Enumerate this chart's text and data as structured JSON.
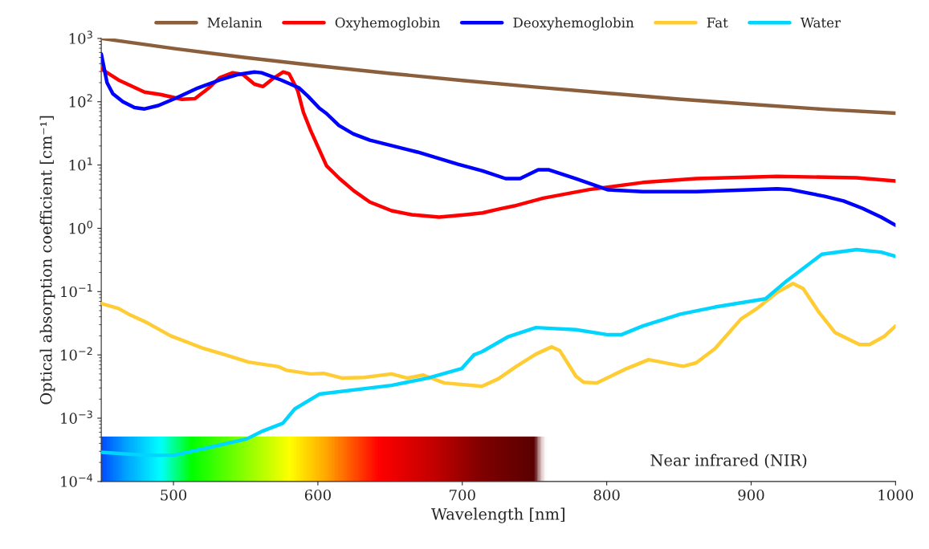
{
  "chart_data": {
    "type": "line",
    "xlabel": "Wavelength [nm]",
    "ylabel": "Optical absorption coefficient [cm⁻¹]",
    "log": "y",
    "xlim": [
      450,
      1000
    ],
    "xticks": [
      500,
      600,
      700,
      800,
      900,
      1000
    ],
    "ylim": [
      0.0001,
      1000
    ],
    "yticks": [
      {
        "value": 0.0001,
        "label": "10$^{−4}$"
      },
      {
        "value": 0.001,
        "label": "10$^{−3}$"
      },
      {
        "value": 0.01,
        "label": "10$^{−2}$"
      },
      {
        "value": 0.1,
        "label": "10$^{−1}$"
      },
      {
        "value": 1,
        "label": "10$^{0}$"
      },
      {
        "value": 10,
        "label": "10$^{1}$"
      },
      {
        "value": 100,
        "label": "10$^{2}$"
      },
      {
        "value": 1000,
        "label": "10$^{3}$"
      }
    ],
    "grid": false,
    "legend": "top",
    "marker": "none",
    "line_style": "solid",
    "annotations": [
      "Near infrared (NIR)"
    ],
    "series": [
      {
        "name": "Melanin",
        "color": "#8b5e3c",
        "x": [
          450,
          500,
          550,
          600,
          650,
          700,
          750,
          800,
          850,
          900,
          950,
          1000
        ],
        "values": [
          1000,
          694,
          499,
          370,
          280,
          217,
          171,
          137,
          110,
          91,
          76,
          66
        ]
      },
      {
        "name": "Oxyhemoglobin",
        "color": "#ff0000",
        "x": [
          450,
          462,
          480,
          491,
          506,
          515,
          524.5,
          532,
          541,
          548,
          556,
          562,
          569,
          576,
          580,
          586,
          590,
          595,
          601,
          606,
          615,
          625,
          636,
          651,
          665,
          684,
          702.5,
          714,
          725,
          736,
          756,
          788,
          825,
          862,
          918,
          973,
          1000
        ],
        "values": [
          330,
          220,
          142,
          130,
          109,
          112,
          165,
          240,
          287,
          270,
          190,
          174,
          233,
          295,
          277,
          151,
          68,
          35,
          17.4,
          9.7,
          6.1,
          3.9,
          2.6,
          1.9,
          1.64,
          1.5,
          1.64,
          1.75,
          2.0,
          2.26,
          3.0,
          4.1,
          5.3,
          6.1,
          6.6,
          6.3,
          5.6
        ]
      },
      {
        "name": "Deoxyhemoglobin",
        "color": "#0000ff",
        "x": [
          450,
          454,
          458,
          465,
          473,
          480,
          489.5,
          502,
          517,
          532,
          545,
          556,
          561,
          574.6,
          587,
          593,
          601,
          606,
          614.6,
          624.6,
          636,
          669,
          697,
          714,
          730,
          740,
          752.6,
          760,
          778.7,
          801,
          825,
          862,
          918,
          927,
          951,
          964,
          977,
          990,
          1000
        ],
        "values": [
          570,
          200,
          134,
          100,
          81,
          77,
          87,
          115,
          165,
          220,
          270,
          295,
          287,
          220,
          165,
          123,
          79,
          65,
          42,
          31,
          24.7,
          16,
          10.3,
          8.1,
          6.1,
          6.1,
          8.4,
          8.4,
          6.1,
          4.05,
          3.8,
          3.8,
          4.2,
          4.1,
          3.2,
          2.7,
          2.07,
          1.5,
          1.12
        ]
      },
      {
        "name": "Fat",
        "color": "#ffcc33",
        "x": [
          450,
          462,
          469,
          482,
          498,
          521,
          536,
          552,
          573,
          578.5,
          595,
          604,
          617,
          632,
          651,
          662,
          673,
          687.5,
          713.6,
          725,
          737.5,
          751,
          762,
          767.6,
          778.7,
          784,
          793,
          814,
          829,
          853,
          862,
          875,
          893,
          904,
          918,
          929,
          936,
          947,
          958,
          975,
          982,
          992,
          1000
        ],
        "values": [
          0.065,
          0.054,
          0.044,
          0.032,
          0.02,
          0.0126,
          0.01,
          0.0077,
          0.0065,
          0.0057,
          0.005,
          0.0051,
          0.0043,
          0.0044,
          0.005,
          0.0043,
          0.0048,
          0.0036,
          0.0032,
          0.0042,
          0.0066,
          0.0103,
          0.0134,
          0.0116,
          0.0046,
          0.0037,
          0.0036,
          0.0061,
          0.0084,
          0.0066,
          0.0075,
          0.0126,
          0.037,
          0.054,
          0.097,
          0.134,
          0.112,
          0.047,
          0.0226,
          0.0146,
          0.0146,
          0.0195,
          0.0286
        ]
      },
      {
        "name": "Water",
        "color": "#00d5ff",
        "x": [
          450,
          480,
          500.6,
          526,
          550.7,
          562,
          575.7,
          584,
          601,
          651,
          676,
          699.7,
          708,
          713.6,
          732,
          751,
          778.7,
          801,
          810,
          825,
          851,
          875,
          910,
          925,
          949,
          973,
          990,
          1000
        ],
        "values": [
          0.00029,
          0.00026,
          0.00026,
          0.00035,
          0.00047,
          0.00063,
          0.00083,
          0.0014,
          0.0024,
          0.0033,
          0.0043,
          0.0061,
          0.01,
          0.0112,
          0.0195,
          0.027,
          0.025,
          0.0208,
          0.0208,
          0.0286,
          0.044,
          0.057,
          0.077,
          0.15,
          0.39,
          0.46,
          0.42,
          0.36
        ]
      }
    ]
  }
}
